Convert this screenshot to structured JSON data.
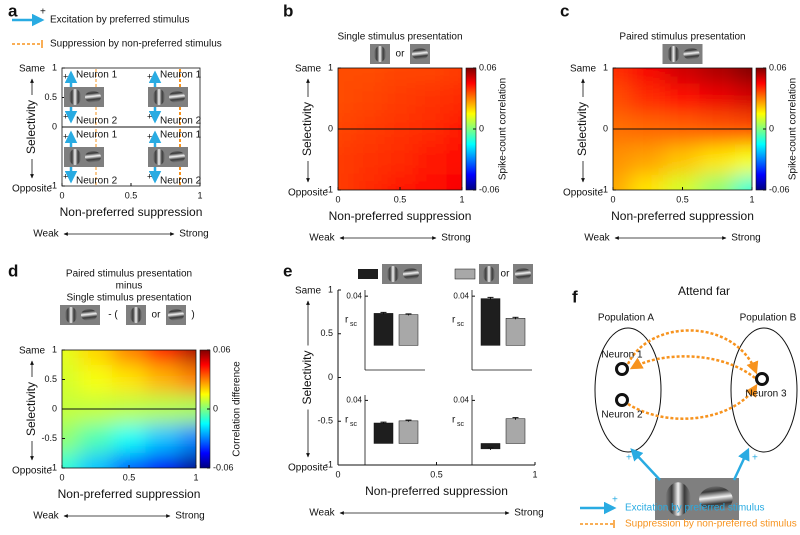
{
  "chart_data": [
    {
      "type": "schematic",
      "label": "a",
      "legend": [
        "Excitation by preferred stimulus",
        "Suppression by non-preferred stimulus"
      ],
      "legend_colors": [
        "#29abe2",
        "#f7931e"
      ],
      "sign": "+",
      "neurons": [
        [
          "Neuron 1",
          "Neuron 2"
        ],
        [
          "Neuron 1",
          "Neuron 2"
        ],
        [
          "Neuron 1",
          "Neuron 2"
        ],
        [
          "Neuron 1",
          "Neuron 2"
        ]
      ],
      "xlabel": "Non-preferred suppression",
      "xlabel_left": "Weak",
      "xlabel_right": "Strong",
      "ylabel": "Selectivity",
      "ylabel_top": "Same",
      "ylabel_bottom": "Opposite",
      "xlim": [
        0,
        1
      ],
      "xticks": [
        0,
        0.5,
        1
      ],
      "ylim": [
        -1,
        1
      ],
      "yticks": [
        -1,
        0,
        0.5,
        1
      ],
      "hline": 0
    },
    {
      "type": "heatmap",
      "label": "b",
      "title_lines": [
        {
          "text": "Single stimulus presentation",
          "color": "#9a9a9a"
        }
      ],
      "icon_text": [
        "or"
      ],
      "x": [
        0,
        0.25,
        0.5,
        0.75,
        1
      ],
      "y": [
        1,
        0.5,
        0,
        -0.5,
        -1
      ],
      "z": [
        [
          0.036,
          0.036,
          0.037,
          0.037,
          0.038
        ],
        [
          0.036,
          0.037,
          0.038,
          0.039,
          0.04
        ],
        [
          0.037,
          0.038,
          0.039,
          0.04,
          0.042
        ],
        [
          0.038,
          0.039,
          0.04,
          0.042,
          0.044
        ],
        [
          0.038,
          0.04,
          0.042,
          0.044,
          0.046
        ]
      ],
      "zlim": [
        -0.06,
        0.06
      ],
      "zticks": [
        -0.06,
        0,
        0.06
      ],
      "zlabel": "Spike-count correlation",
      "xlabel": "Non-preferred suppression",
      "xlabel_left": "Weak",
      "xlabel_right": "Strong",
      "ylabel": "Selectivity",
      "ylabel_top": "Same",
      "ylabel_bottom": "Opposite",
      "xlim": [
        0,
        1
      ],
      "xticks": [
        0,
        0.5,
        1
      ],
      "ylim": [
        -1,
        1
      ],
      "yticks": [
        -1,
        0,
        1
      ],
      "hline": 0
    },
    {
      "type": "heatmap",
      "label": "c",
      "title_lines": [
        {
          "text": "Paired stimulus presentation",
          "color": "#111111"
        }
      ],
      "icon_text": [],
      "x": [
        0,
        0.25,
        0.5,
        0.75,
        1
      ],
      "y": [
        1,
        0.5,
        0,
        -0.5,
        -1
      ],
      "z": [
        [
          0.04,
          0.046,
          0.051,
          0.055,
          0.06
        ],
        [
          0.036,
          0.04,
          0.044,
          0.047,
          0.05
        ],
        [
          0.032,
          0.033,
          0.034,
          0.035,
          0.036
        ],
        [
          0.028,
          0.026,
          0.022,
          0.018,
          0.014
        ],
        [
          0.025,
          0.018,
          0.01,
          0.002,
          -0.01
        ]
      ],
      "zlim": [
        -0.06,
        0.06
      ],
      "zticks": [
        -0.06,
        0,
        0.06
      ],
      "zlabel": "Spike-count correlation",
      "xlabel": "Non-preferred suppression",
      "xlabel_left": "Weak",
      "xlabel_right": "Strong",
      "ylabel": "Selectivity",
      "ylabel_top": "Same",
      "ylabel_bottom": "Opposite",
      "xlim": [
        0,
        1
      ],
      "xticks": [
        0,
        0.5,
        1
      ],
      "ylim": [
        -1,
        1
      ],
      "yticks": [
        -1,
        0,
        1
      ],
      "hline": 0
    },
    {
      "type": "heatmap",
      "label": "d",
      "title_lines": [
        {
          "text": "Paired stimulus presentation",
          "color": "#111111"
        },
        {
          "text": "minus",
          "color": "#111111"
        },
        {
          "text": "Single stimulus presentation",
          "color": "#9a9a9a"
        }
      ],
      "icon_text": [
        "- (",
        "or",
        ")"
      ],
      "x": [
        0,
        0.25,
        0.5,
        0.75,
        1
      ],
      "y": [
        1,
        0.5,
        0,
        -0.5,
        -1
      ],
      "z": [
        [
          0.012,
          0.02,
          0.03,
          0.042,
          0.055
        ],
        [
          0.01,
          0.014,
          0.018,
          0.024,
          0.03
        ],
        [
          0.008,
          0.008,
          0.007,
          0.006,
          0.005
        ],
        [
          0.002,
          -0.006,
          -0.014,
          -0.022,
          -0.03
        ],
        [
          -0.01,
          -0.022,
          -0.034,
          -0.046,
          -0.058
        ]
      ],
      "zlim": [
        -0.06,
        0.06
      ],
      "zticks": [
        -0.06,
        0,
        0.06
      ],
      "zlabel": "Correlation difference",
      "xlabel": "Non-preferred suppression",
      "xlabel_left": "Weak",
      "xlabel_right": "Strong",
      "ylabel": "Selectivity",
      "ylabel_top": "Same",
      "ylabel_bottom": "Opposite",
      "xlim": [
        0,
        1
      ],
      "xticks": [
        0,
        0.5,
        1
      ],
      "ylim": [
        -1,
        1
      ],
      "yticks": [
        -1,
        -0.5,
        0,
        0.5,
        1
      ],
      "hline": 0
    },
    {
      "type": "bar_grid",
      "label": "e",
      "legend_or": "or",
      "series": [
        {
          "color": "#1e1e1e",
          "values": [
            0.026,
            0.038,
            0.019,
            -0.005
          ],
          "errors": [
            0.0008,
            0.001,
            0.0008,
            0.001
          ]
        },
        {
          "color": "#a8a8a8",
          "values": [
            0.025,
            0.022,
            0.021,
            0.023
          ],
          "errors": [
            0.0006,
            0.0008,
            0.0007,
            0.001
          ]
        }
      ],
      "panel_ylabel": "r",
      "panel_ylabel_sub": "sc",
      "panel_ylim": [
        -0.02,
        0.045
      ],
      "panel_yticks": [
        0.04
      ],
      "xlabel": "Non-preferred suppression",
      "xlabel_left": "Weak",
      "xlabel_right": "Strong",
      "ylabel": "Selectivity",
      "ylabel_top": "Same",
      "ylabel_bottom": "Opposite",
      "xlim": [
        0,
        1
      ],
      "xticks": [
        0,
        0.5,
        1
      ],
      "ylim": [
        -1,
        1
      ],
      "yticks": [
        -1,
        -0.5,
        0,
        0.5,
        1
      ]
    }
  ],
  "diagram": {
    "label": "f",
    "title": "Attend far",
    "groups": [
      "Population A",
      "Population B"
    ],
    "neurons": [
      "Neuron 1",
      "Neuron 2",
      "Neuron 3"
    ],
    "sign": "+",
    "legend": [
      "Excitation by preferred stimulus",
      "Suppression by non-preferred stimulus"
    ]
  }
}
